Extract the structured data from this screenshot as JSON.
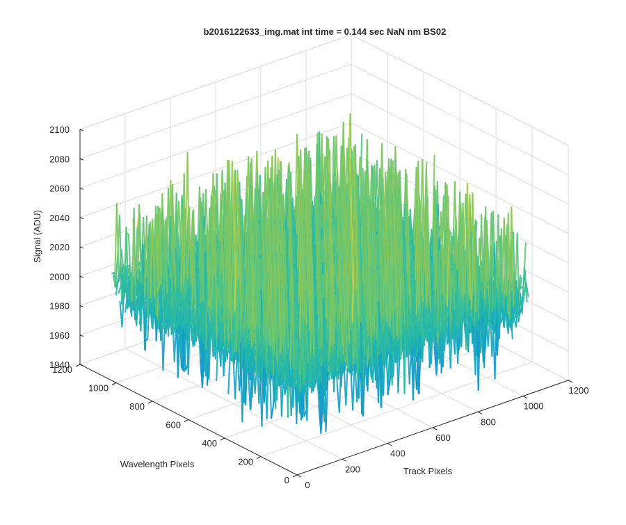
{
  "chart_data": {
    "type": "surface",
    "title": "b2016122633_img.mat int time = 0.144 sec  NaN nm BS02",
    "xlabel": "Track Pixels",
    "ylabel": "Wavelength Pixels",
    "zlabel": "Signal (ADU)",
    "xlim": [
      0,
      1200
    ],
    "ylim": [
      0,
      1200
    ],
    "zlim": [
      1940,
      2100
    ],
    "x_ticks": [
      0,
      200,
      400,
      600,
      800,
      1000,
      1200
    ],
    "y_ticks": [
      0,
      200,
      400,
      600,
      800,
      1000,
      1200
    ],
    "z_ticks": [
      1940,
      1960,
      1980,
      2000,
      2020,
      2040,
      2060,
      2080,
      2100
    ],
    "x_tick_labels": [
      "0",
      "200",
      "400",
      "600",
      "800",
      "1000",
      "1200"
    ],
    "y_tick_labels": [
      "0",
      "200",
      "400",
      "600",
      "800",
      "1000",
      "1200"
    ],
    "z_tick_labels": [
      "1940",
      "1960",
      "1980",
      "2000",
      "2020",
      "2040",
      "2060",
      "2080",
      "2100"
    ],
    "grid": true,
    "colormap": "parula",
    "data_x_range": [
      1,
      1024
    ],
    "data_y_range": [
      1,
      1024
    ],
    "data_z_mean": 2005,
    "data_z_range": [
      1950,
      2090
    ],
    "colors": {
      "low": "#0d7fd6",
      "mid": "#1fb5b0",
      "high": "#e3d43f",
      "axis": "#262626",
      "grid": "#dcdcdc"
    }
  }
}
